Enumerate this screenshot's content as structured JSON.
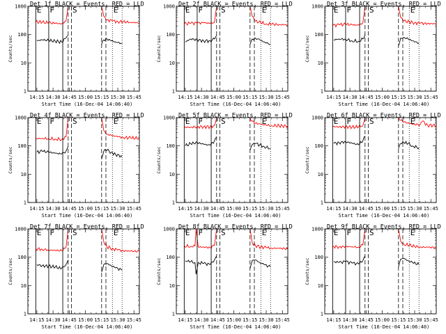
{
  "figure": {
    "shared": {
      "xlabel": "Start Time (16-Dec-04 14:06:40)",
      "ylabel": "Counts/sec",
      "x_tick_labels": [
        "14:15",
        "14:30",
        "14:45",
        "15:00",
        "15:15",
        "15:30",
        "15:45"
      ],
      "y_tick_labels": [
        "1",
        "10",
        "100",
        "1000"
      ],
      "ylim": [
        1,
        1000
      ],
      "yscale": "log",
      "xlim": [
        "14:06:40",
        "15:50"
      ],
      "colors": {
        "events": "#000000",
        "lld": "#ff0000",
        "axes": "#000000"
      },
      "markers": [
        {
          "time": "14:14",
          "label": "E",
          "style": "solid"
        },
        {
          "time": "14:26",
          "label": "F",
          "style": "solid"
        },
        {
          "time": "14:39",
          "label": "",
          "style": "solid"
        },
        {
          "time": "14:44",
          "label": "",
          "style": "dashed"
        },
        {
          "time": "14:47",
          "label": "S",
          "style": "dashed"
        },
        {
          "time": "15:15",
          "label": "",
          "style": "dashed"
        },
        {
          "time": "15:19",
          "label": "",
          "style": "dashed"
        },
        {
          "time": "15:25",
          "label": "E",
          "style": "dotted"
        },
        {
          "time": "15:34",
          "label": "",
          "style": "dotted"
        }
      ]
    }
  },
  "chart_data": [
    {
      "type": "line",
      "title": "Det 1f BLACK = Events, RED = LLD",
      "series": [
        {
          "color": "#ff0000",
          "segments": [
            {
              "x": [
                "14:14",
                "14:20",
                "14:26",
                "14:32",
                "14:38",
                "14:42",
                "14:44"
              ],
              "values": [
                280,
                270,
                260,
                250,
                240,
                300,
                1000
              ]
            },
            {
              "x": [
                "15:15",
                "15:17",
                "15:20",
                "15:25",
                "15:30",
                "15:35",
                "15:42",
                "15:50"
              ],
              "values": [
                1000,
                450,
                330,
                300,
                290,
                280,
                270,
                260
              ]
            }
          ]
        },
        {
          "color": "#000000",
          "segments": [
            {
              "x": [
                "14:15",
                "14:20",
                "14:26",
                "14:32",
                "14:38",
                "14:42",
                "14:44"
              ],
              "values": [
                60,
                65,
                62,
                58,
                55,
                75,
                90
              ]
            },
            {
              "x": [
                "15:15",
                "15:17",
                "15:20",
                "15:24",
                "15:28",
                "15:34"
              ],
              "values": [
                45,
                65,
                70,
                60,
                55,
                48
              ]
            }
          ]
        }
      ]
    },
    {
      "type": "line",
      "title": "Det 2f BLACK = Events, RED = LLD",
      "series": [
        {
          "color": "#ff0000",
          "segments": [
            {
              "x": [
                "14:14",
                "14:20",
                "14:26",
                "14:32",
                "14:38",
                "14:42",
                "14:44"
              ],
              "values": [
                240,
                250,
                255,
                260,
                250,
                270,
                1000
              ]
            },
            {
              "x": [
                "15:15",
                "15:17",
                "15:20",
                "15:25",
                "15:30",
                "15:35",
                "15:42",
                "15:50"
              ],
              "values": [
                1000,
                450,
                300,
                260,
                240,
                230,
                225,
                220
              ]
            }
          ]
        },
        {
          "color": "#000000",
          "segments": [
            {
              "x": [
                "14:15",
                "14:20",
                "14:26",
                "14:32",
                "14:38",
                "14:42",
                "14:44"
              ],
              "values": [
                55,
                70,
                65,
                60,
                60,
                70,
                95
              ]
            },
            {
              "x": [
                "15:15",
                "15:17",
                "15:20",
                "15:24",
                "15:28",
                "15:34"
              ],
              "values": [
                45,
                70,
                75,
                65,
                55,
                45
              ]
            }
          ]
        }
      ]
    },
    {
      "type": "line",
      "title": "Det 3f BLACK = Events, RED = LLD",
      "series": [
        {
          "color": "#ff0000",
          "segments": [
            {
              "x": [
                "14:14",
                "14:20",
                "14:26",
                "14:32",
                "14:38",
                "14:42",
                "14:44"
              ],
              "values": [
                210,
                220,
                230,
                220,
                215,
                260,
                1000
              ]
            },
            {
              "x": [
                "15:15",
                "15:17",
                "15:20",
                "15:25",
                "15:30",
                "15:35",
                "15:42",
                "15:50"
              ],
              "values": [
                1000,
                400,
                300,
                280,
                260,
                250,
                245,
                240
              ]
            }
          ]
        },
        {
          "color": "#000000",
          "segments": [
            {
              "x": [
                "14:15",
                "14:20",
                "14:26",
                "14:32",
                "14:38",
                "14:42",
                "14:44"
              ],
              "values": [
                65,
                70,
                68,
                60,
                58,
                70,
                100
              ]
            },
            {
              "x": [
                "15:15",
                "15:17",
                "15:20",
                "15:24",
                "15:28",
                "15:34"
              ],
              "values": [
                40,
                75,
                80,
                70,
                60,
                50
              ]
            }
          ]
        }
      ]
    },
    {
      "type": "line",
      "title": "Det 4f BLACK = Events, RED = LLD",
      "series": [
        {
          "color": "#ff0000",
          "segments": [
            {
              "x": [
                "14:14",
                "14:20",
                "14:26",
                "14:32",
                "14:38",
                "14:42",
                "14:44"
              ],
              "values": [
                180,
                185,
                180,
                175,
                170,
                210,
                1000
              ]
            },
            {
              "x": [
                "15:15",
                "15:17",
                "15:20",
                "15:25",
                "15:30",
                "15:35",
                "15:42",
                "15:50"
              ],
              "values": [
                1000,
                350,
                260,
                230,
                210,
                200,
                190,
                185
              ]
            }
          ]
        },
        {
          "color": "#000000",
          "segments": [
            {
              "x": [
                "14:15",
                "14:20",
                "14:26",
                "14:32",
                "14:38",
                "14:42",
                "14:44"
              ],
              "values": [
                60,
                65,
                60,
                55,
                52,
                65,
                95
              ]
            },
            {
              "x": [
                "15:15",
                "15:17",
                "15:20",
                "15:24",
                "15:28",
                "15:34"
              ],
              "values": [
                35,
                65,
                70,
                60,
                50,
                42
              ]
            }
          ]
        }
      ]
    },
    {
      "type": "line",
      "title": "Det 5f BLACK = Events, RED = LLD",
      "series": [
        {
          "color": "#ff0000",
          "segments": [
            {
              "x": [
                "14:14",
                "14:20",
                "14:26",
                "14:32",
                "14:38",
                "14:42",
                "14:44"
              ],
              "values": [
                450,
                460,
                470,
                480,
                470,
                520,
                1000
              ]
            },
            {
              "x": [
                "15:15",
                "15:17",
                "15:20",
                "15:25",
                "15:30",
                "15:35",
                "15:42",
                "15:50"
              ],
              "values": [
                1000,
                750,
                640,
                580,
                540,
                520,
                510,
                500
              ]
            }
          ]
        },
        {
          "color": "#000000",
          "segments": [
            {
              "x": [
                "14:15",
                "14:20",
                "14:26",
                "14:32",
                "14:38",
                "14:42",
                "14:44"
              ],
              "values": [
                100,
                120,
                130,
                115,
                105,
                150,
                200
              ]
            },
            {
              "x": [
                "15:15",
                "15:17",
                "15:20",
                "15:24",
                "15:28",
                "15:34"
              ],
              "values": [
                70,
                110,
                120,
                110,
                95,
                80
              ]
            }
          ]
        }
      ]
    },
    {
      "type": "line",
      "title": "Det 6f BLACK = Events, RED = LLD",
      "series": [
        {
          "color": "#ff0000",
          "segments": [
            {
              "x": [
                "14:14",
                "14:20",
                "14:26",
                "14:32",
                "14:38",
                "14:42",
                "14:44"
              ],
              "values": [
                480,
                470,
                470,
                460,
                470,
                530,
                1000
              ]
            },
            {
              "x": [
                "15:15",
                "15:17",
                "15:20",
                "15:25",
                "15:30",
                "15:35",
                "15:37",
                "15:42",
                "15:50"
              ],
              "values": [
                1000,
                800,
                700,
                620,
                580,
                560,
                750,
                540,
                520
              ]
            }
          ]
        },
        {
          "color": "#000000",
          "segments": [
            {
              "x": [
                "14:15",
                "14:20",
                "14:26",
                "14:32",
                "14:38",
                "14:42",
                "14:44"
              ],
              "values": [
                120,
                130,
                140,
                125,
                110,
                150,
                220
              ]
            },
            {
              "x": [
                "15:15",
                "15:17",
                "15:20",
                "15:24",
                "15:28",
                "15:34"
              ],
              "values": [
                80,
                120,
                130,
                120,
                100,
                85
              ]
            }
          ]
        }
      ]
    },
    {
      "type": "line",
      "title": "Det 7f BLACK = Events, RED = LLD",
      "series": [
        {
          "color": "#ff0000",
          "segments": [
            {
              "x": [
                "14:14",
                "14:20",
                "14:26",
                "14:32",
                "14:38",
                "14:42",
                "14:44"
              ],
              "values": [
                200,
                190,
                180,
                175,
                170,
                220,
                1000
              ]
            },
            {
              "x": [
                "15:15",
                "15:17",
                "15:20",
                "15:25",
                "15:30",
                "15:35",
                "15:42",
                "15:50"
              ],
              "values": [
                1000,
                350,
                230,
                200,
                180,
                170,
                165,
                160
              ]
            }
          ]
        },
        {
          "color": "#000000",
          "segments": [
            {
              "x": [
                "14:15",
                "14:20",
                "14:26",
                "14:32",
                "14:38",
                "14:42",
                "14:44"
              ],
              "values": [
                55,
                50,
                48,
                45,
                40,
                55,
                80
              ]
            },
            {
              "x": [
                "15:15",
                "15:17",
                "15:20",
                "15:24",
                "15:28",
                "15:34"
              ],
              "values": [
                30,
                55,
                60,
                50,
                42,
                35
              ]
            }
          ]
        }
      ]
    },
    {
      "type": "line",
      "title": "Det 8f BLACK = Events, RED = LLD",
      "series": [
        {
          "color": "#ff0000",
          "segments": [
            {
              "x": [
                "14:14",
                "14:20",
                "14:24",
                "14:25",
                "14:27",
                "14:32",
                "14:38",
                "14:42",
                "14:44"
              ],
              "values": [
                250,
                240,
                250,
                1000,
                230,
                230,
                220,
                260,
                1000
              ]
            },
            {
              "x": [
                "15:15",
                "15:17",
                "15:20",
                "15:25",
                "15:30",
                "15:35",
                "15:42",
                "15:50"
              ],
              "values": [
                1000,
                330,
                260,
                230,
                220,
                210,
                205,
                200
              ]
            }
          ]
        },
        {
          "color": "#000000",
          "segments": [
            {
              "x": [
                "14:15",
                "14:20",
                "14:24",
                "14:25",
                "14:27",
                "14:32",
                "14:38",
                "14:42",
                "14:44"
              ],
              "values": [
                75,
                70,
                65,
                25,
                65,
                60,
                55,
                80,
                110
              ]
            },
            {
              "x": [
                "15:15",
                "15:17",
                "15:20",
                "15:24",
                "15:28",
                "15:34"
              ],
              "values": [
                40,
                75,
                80,
                65,
                55,
                45
              ]
            }
          ]
        }
      ]
    },
    {
      "type": "line",
      "title": "Det 9f BLACK = Events, RED = LLD",
      "series": [
        {
          "color": "#ff0000",
          "segments": [
            {
              "x": [
                "14:14",
                "14:20",
                "14:26",
                "14:32",
                "14:38",
                "14:42",
                "14:44"
              ],
              "values": [
                240,
                230,
                240,
                235,
                225,
                270,
                1000
              ]
            },
            {
              "x": [
                "15:15",
                "15:17",
                "15:20",
                "15:25",
                "15:30",
                "15:35",
                "15:42",
                "15:50"
              ],
              "values": [
                1000,
                380,
                290,
                260,
                240,
                230,
                225,
                220
              ]
            }
          ]
        },
        {
          "color": "#000000",
          "segments": [
            {
              "x": [
                "14:15",
                "14:20",
                "14:26",
                "14:32",
                "14:38",
                "14:42",
                "14:44"
              ],
              "values": [
                70,
                65,
                70,
                62,
                58,
                75,
                110
              ]
            },
            {
              "x": [
                "15:15",
                "15:17",
                "15:20",
                "15:24",
                "15:28",
                "15:34"
              ],
              "values": [
                45,
                85,
                90,
                75,
                65,
                55
              ]
            }
          ]
        }
      ]
    }
  ]
}
